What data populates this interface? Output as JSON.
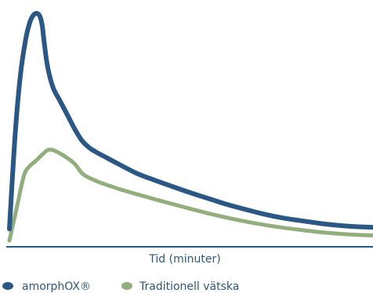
{
  "chart_data": {
    "type": "line",
    "title": "",
    "xlabel": "Tid (minuter)",
    "ylabel": "",
    "grid": false,
    "legend_position": "bottom-left",
    "xlim": [
      0,
      100
    ],
    "ylim": [
      0,
      100
    ],
    "series": [
      {
        "name": "amorphOX®",
        "color": "#2a5783",
        "points": [
          [
            0,
            6
          ],
          [
            1.5,
            45
          ],
          [
            3,
            72
          ],
          [
            4.5,
            88
          ],
          [
            5.6,
            95
          ],
          [
            6.5,
            98
          ],
          [
            7.4,
            99
          ],
          [
            8.3,
            98
          ],
          [
            9,
            94
          ],
          [
            9.6,
            86
          ],
          [
            10.5,
            76
          ],
          [
            12,
            67
          ],
          [
            14,
            61
          ],
          [
            16,
            55
          ],
          [
            18,
            49
          ],
          [
            20,
            44
          ],
          [
            22,
            41
          ],
          [
            24,
            39
          ],
          [
            27,
            36.5
          ],
          [
            30,
            34
          ],
          [
            35,
            30
          ],
          [
            40,
            27
          ],
          [
            45,
            24.2
          ],
          [
            50,
            21.5
          ],
          [
            55,
            19
          ],
          [
            60,
            16.5
          ],
          [
            65,
            14.4
          ],
          [
            70,
            12.4
          ],
          [
            75,
            10.8
          ],
          [
            80,
            9.6
          ],
          [
            85,
            8.5
          ],
          [
            90,
            7.6
          ],
          [
            95,
            7
          ],
          [
            100,
            6.7
          ]
        ]
      },
      {
        "name": "Traditionell vätska",
        "color": "#92ae7d",
        "points": [
          [
            0,
            1
          ],
          [
            2,
            15
          ],
          [
            4,
            29
          ],
          [
            5.5,
            33
          ],
          [
            7,
            35
          ],
          [
            9,
            38
          ],
          [
            10.5,
            40
          ],
          [
            12,
            40
          ],
          [
            14,
            38.5
          ],
          [
            16,
            36.5
          ],
          [
            18,
            34
          ],
          [
            20,
            30
          ],
          [
            22,
            28
          ],
          [
            25,
            26
          ],
          [
            30,
            23.3
          ],
          [
            35,
            21
          ],
          [
            40,
            18.8
          ],
          [
            45,
            16.7
          ],
          [
            50,
            14.6
          ],
          [
            55,
            12.6
          ],
          [
            60,
            10.8
          ],
          [
            65,
            9.2
          ],
          [
            70,
            7.8
          ],
          [
            75,
            6.6
          ],
          [
            80,
            5.6
          ],
          [
            85,
            4.7
          ],
          [
            90,
            4
          ],
          [
            95,
            3.5
          ],
          [
            100,
            3.2
          ]
        ]
      }
    ]
  }
}
